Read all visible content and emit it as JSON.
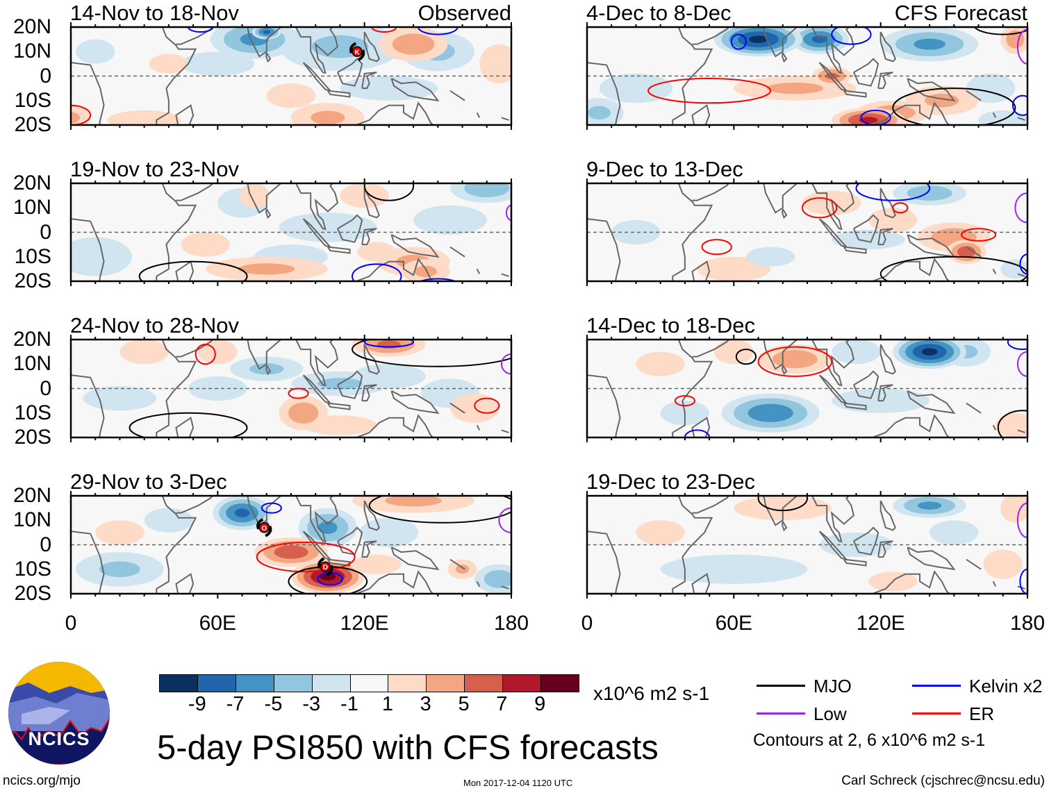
{
  "figure_title": "5-day PSI850 with CFS forecasts",
  "observed_label": "Observed",
  "forecast_label": "CFS Forecast",
  "lat_labels": [
    "20N",
    "10N",
    "0",
    "10S",
    "20S"
  ],
  "lon_labels": [
    "0",
    "60E",
    "120E",
    "180"
  ],
  "colorbar": {
    "units": "x10^6 m2 s-1",
    "ticks": [
      "-9",
      "-7",
      "-5",
      "-3",
      "-1",
      "1",
      "3",
      "5",
      "7",
      "9"
    ],
    "colors": [
      "#0b3161",
      "#2166ac",
      "#4393c3",
      "#92c5de",
      "#d1e5f0",
      "#f7f7f7",
      "#fddbc7",
      "#f4a582",
      "#d6604d",
      "#b2182b",
      "#67001f"
    ]
  },
  "legend": {
    "items": [
      {
        "label": "MJO",
        "color": "#000000"
      },
      {
        "label": "Kelvin x2",
        "color": "#0000ff"
      },
      {
        "label": "Low",
        "color": "#a020f0"
      },
      {
        "label": "ER",
        "color": "#ff0000"
      }
    ],
    "contour_note": "Contours at 2, 6 x10^6 m2 s-1"
  },
  "logo_text": "NCICS",
  "footer": {
    "url": "ncics.org/mjo",
    "timestamp": "Mon 2017-12-04 1120 UTC",
    "author": "Carl Schreck (cjschrec@ncsu.edu)"
  },
  "panels": [
    {
      "title": "14-Nov to 18-Nov",
      "column": "observed",
      "anomalies": [
        [
          75,
          15,
          18,
          8,
          -5
        ],
        [
          80,
          18,
          6,
          3,
          -7
        ],
        [
          110,
          12,
          25,
          10,
          -3
        ],
        [
          130,
          -5,
          20,
          5,
          -2
        ],
        [
          60,
          5,
          15,
          5,
          -2
        ],
        [
          150,
          10,
          15,
          8,
          -3
        ],
        [
          10,
          10,
          8,
          5,
          -1.5
        ],
        [
          140,
          13,
          14,
          7,
          4
        ],
        [
          90,
          -8,
          10,
          5,
          2
        ],
        [
          105,
          -17,
          15,
          6,
          3
        ],
        [
          30,
          -18,
          15,
          4,
          2
        ],
        [
          0,
          -17,
          8,
          5,
          3
        ],
        [
          40,
          5,
          8,
          4,
          2
        ],
        [
          175,
          5,
          8,
          8,
          2
        ]
      ],
      "contours": [
        [
          "ER",
          0,
          -16,
          8,
          4
        ],
        [
          "Kelvin",
          53,
          20,
          5,
          2
        ],
        [
          "Kelvin",
          150,
          20,
          8,
          3
        ],
        [
          "ER",
          128,
          20,
          5,
          2
        ]
      ],
      "storms": [
        [
          117,
          10,
          "K"
        ]
      ]
    },
    {
      "title": "19-Nov to 23-Nov",
      "column": "observed",
      "anomalies": [
        [
          170,
          18,
          15,
          6,
          -4
        ],
        [
          70,
          12,
          10,
          6,
          -2
        ],
        [
          105,
          2,
          20,
          6,
          -2
        ],
        [
          90,
          -10,
          15,
          5,
          -2
        ],
        [
          10,
          -10,
          15,
          8,
          -2
        ],
        [
          155,
          5,
          15,
          6,
          -2
        ],
        [
          80,
          -15,
          25,
          5,
          3
        ],
        [
          140,
          -12,
          15,
          6,
          3
        ],
        [
          125,
          -8,
          8,
          4,
          2
        ],
        [
          145,
          -16,
          10,
          5,
          3
        ],
        [
          120,
          15,
          10,
          5,
          2
        ],
        [
          55,
          -5,
          10,
          5,
          1.5
        ],
        [
          75,
          15,
          6,
          5,
          2
        ]
      ],
      "contours": [
        [
          "MJO",
          50,
          -18,
          22,
          6
        ],
        [
          "MJO",
          130,
          19,
          10,
          6
        ],
        [
          "Kelvin",
          125,
          -18,
          10,
          5
        ],
        [
          "Kelvin",
          150,
          -21,
          8,
          2
        ],
        [
          "Low",
          180,
          8,
          2,
          3
        ]
      ],
      "storms": []
    },
    {
      "title": "24-Nov to 28-Nov",
      "column": "observed",
      "anomalies": [
        [
          80,
          8,
          15,
          5,
          -3
        ],
        [
          110,
          2,
          20,
          5,
          -3
        ],
        [
          130,
          5,
          15,
          5,
          -2
        ],
        [
          155,
          -2,
          12,
          6,
          -2
        ],
        [
          20,
          -4,
          15,
          5,
          -2
        ],
        [
          60,
          0,
          12,
          5,
          -2
        ],
        [
          130,
          18,
          15,
          5,
          5
        ],
        [
          95,
          -10,
          10,
          7,
          4
        ],
        [
          165,
          -8,
          10,
          6,
          2
        ],
        [
          60,
          15,
          8,
          5,
          2
        ],
        [
          110,
          -15,
          15,
          4,
          2
        ],
        [
          30,
          15,
          10,
          5,
          1.5
        ]
      ],
      "contours": [
        [
          "ER",
          55,
          14,
          4,
          4
        ],
        [
          "ER",
          93,
          -2,
          4,
          2
        ],
        [
          "ER",
          170,
          -7,
          5,
          3
        ],
        [
          "MJO",
          48,
          -16,
          24,
          6
        ],
        [
          "MJO",
          150,
          16,
          35,
          7
        ],
        [
          "Kelvin",
          130,
          19,
          10,
          2
        ],
        [
          "Low",
          180,
          10,
          4,
          4
        ]
      ],
      "storms": []
    },
    {
      "title": "29-Nov to 3-Dec",
      "column": "observed",
      "anomalies": [
        [
          70,
          13,
          12,
          7,
          -7
        ],
        [
          105,
          7,
          12,
          8,
          -5
        ],
        [
          20,
          -10,
          18,
          7,
          -3
        ],
        [
          175,
          -14,
          10,
          6,
          -4
        ],
        [
          130,
          5,
          12,
          6,
          -2
        ],
        [
          40,
          10,
          10,
          5,
          -2
        ],
        [
          90,
          -3,
          15,
          6,
          6
        ],
        [
          105,
          -13,
          15,
          7,
          9
        ],
        [
          140,
          18,
          25,
          5,
          3
        ],
        [
          160,
          -10,
          6,
          4,
          3
        ],
        [
          125,
          -8,
          10,
          4,
          2
        ],
        [
          20,
          5,
          10,
          5,
          1.5
        ]
      ],
      "contours": [
        [
          "ER",
          96,
          -5,
          20,
          6
        ],
        [
          "MJO",
          105,
          -15,
          16,
          6
        ],
        [
          "MJO",
          152,
          16,
          30,
          7
        ],
        [
          "Kelvin",
          106,
          -14,
          5,
          2.5
        ],
        [
          "Kelvin",
          82,
          15,
          4,
          2
        ],
        [
          "Low",
          180,
          10,
          5,
          5
        ]
      ],
      "storms": [
        [
          79,
          7,
          "O"
        ],
        [
          104,
          -9,
          "D"
        ]
      ]
    },
    {
      "title": "4-Dec to 8-Dec",
      "column": "forecast",
      "anomalies": [
        [
          70,
          15,
          18,
          7,
          -9
        ],
        [
          95,
          15,
          12,
          6,
          -7
        ],
        [
          140,
          13,
          20,
          7,
          -5
        ],
        [
          20,
          -5,
          15,
          6,
          -2
        ],
        [
          5,
          -15,
          10,
          6,
          -3
        ],
        [
          165,
          -5,
          10,
          6,
          -2
        ],
        [
          170,
          -18,
          10,
          4,
          -2
        ],
        [
          85,
          -5,
          25,
          5,
          3
        ],
        [
          115,
          -18,
          15,
          5,
          7
        ],
        [
          125,
          -15,
          15,
          5,
          4
        ],
        [
          175,
          15,
          6,
          6,
          4
        ],
        [
          100,
          0,
          8,
          4,
          5
        ],
        [
          145,
          -10,
          15,
          6,
          3
        ]
      ],
      "contours": [
        [
          "ER",
          50,
          -6,
          25,
          5
        ],
        [
          "Kelvin",
          62,
          14,
          3,
          3
        ],
        [
          "Kelvin",
          118,
          -17,
          6,
          3
        ],
        [
          "Kelvin",
          108,
          17,
          8,
          4
        ],
        [
          "MJO",
          150,
          -13,
          25,
          8
        ],
        [
          "MJO",
          170,
          21,
          12,
          4
        ],
        [
          "Low",
          180,
          12,
          4,
          7
        ],
        [
          "Kelvin",
          178,
          -12,
          4,
          4
        ]
      ],
      "storms": []
    },
    {
      "title": "9-Dec to 13-Dec",
      "column": "forecast",
      "anomalies": [
        [
          140,
          16,
          15,
          5,
          -4
        ],
        [
          75,
          -10,
          10,
          4,
          -2
        ],
        [
          115,
          -3,
          15,
          4,
          -2
        ],
        [
          20,
          0,
          10,
          5,
          -1.5
        ],
        [
          175,
          -15,
          6,
          4,
          -2
        ],
        [
          150,
          -2,
          15,
          6,
          4
        ],
        [
          155,
          -8,
          8,
          5,
          6
        ],
        [
          100,
          12,
          12,
          5,
          2
        ],
        [
          125,
          5,
          10,
          5,
          2
        ],
        [
          60,
          -15,
          15,
          5,
          1.5
        ]
      ],
      "contours": [
        [
          "ER",
          95,
          10,
          7,
          4
        ],
        [
          "ER",
          128,
          10,
          3,
          2
        ],
        [
          "ER",
          160,
          -1,
          7,
          2.5
        ],
        [
          "ER",
          53,
          -6,
          6,
          3
        ],
        [
          "MJO",
          150,
          -17,
          30,
          7
        ],
        [
          "Kelvin",
          125,
          18,
          15,
          5
        ],
        [
          "Low",
          180,
          10,
          5,
          6
        ],
        [
          "Kelvin",
          180,
          -13,
          3,
          4
        ]
      ],
      "storms": []
    },
    {
      "title": "14-Dec to 18-Dec",
      "column": "forecast",
      "anomalies": [
        [
          140,
          15,
          15,
          7,
          -9
        ],
        [
          75,
          -10,
          20,
          8,
          -6
        ],
        [
          155,
          15,
          10,
          6,
          -3
        ],
        [
          120,
          -5,
          20,
          5,
          -2
        ],
        [
          40,
          -10,
          10,
          5,
          -1.5
        ],
        [
          110,
          15,
          10,
          5,
          -2
        ],
        [
          85,
          12,
          15,
          6,
          4
        ],
        [
          30,
          10,
          10,
          5,
          2
        ],
        [
          175,
          -15,
          8,
          5,
          2
        ],
        [
          60,
          15,
          8,
          5,
          2
        ]
      ],
      "contours": [
        [
          "ER",
          85,
          11,
          15,
          6
        ],
        [
          "ER",
          40,
          -5,
          4,
          2
        ],
        [
          "MJO",
          65,
          13,
          4,
          3
        ],
        [
          "MJO",
          178,
          -16,
          10,
          7
        ],
        [
          "Low",
          180,
          10,
          4,
          5
        ],
        [
          "Kelvin",
          45,
          -20,
          5,
          3
        ],
        [
          "Kelvin",
          178,
          19,
          6,
          3
        ]
      ],
      "storms": []
    },
    {
      "title": "19-Dec to 23-Dec",
      "column": "forecast",
      "anomalies": [
        [
          140,
          16,
          15,
          5,
          -5
        ],
        [
          60,
          -10,
          30,
          6,
          -2
        ],
        [
          110,
          0,
          15,
          5,
          -1.5
        ],
        [
          150,
          5,
          10,
          5,
          -2
        ],
        [
          80,
          15,
          20,
          5,
          2
        ],
        [
          30,
          5,
          10,
          5,
          1.5
        ],
        [
          175,
          15,
          6,
          6,
          2
        ],
        [
          170,
          -8,
          8,
          6,
          2
        ],
        [
          125,
          -15,
          10,
          4,
          1.5
        ]
      ],
      "contours": [
        [
          "MJO",
          80,
          19,
          10,
          5
        ],
        [
          "Low",
          180,
          10,
          4,
          7
        ],
        [
          "Kelvin",
          180,
          -15,
          3,
          5
        ]
      ],
      "storms": []
    }
  ]
}
